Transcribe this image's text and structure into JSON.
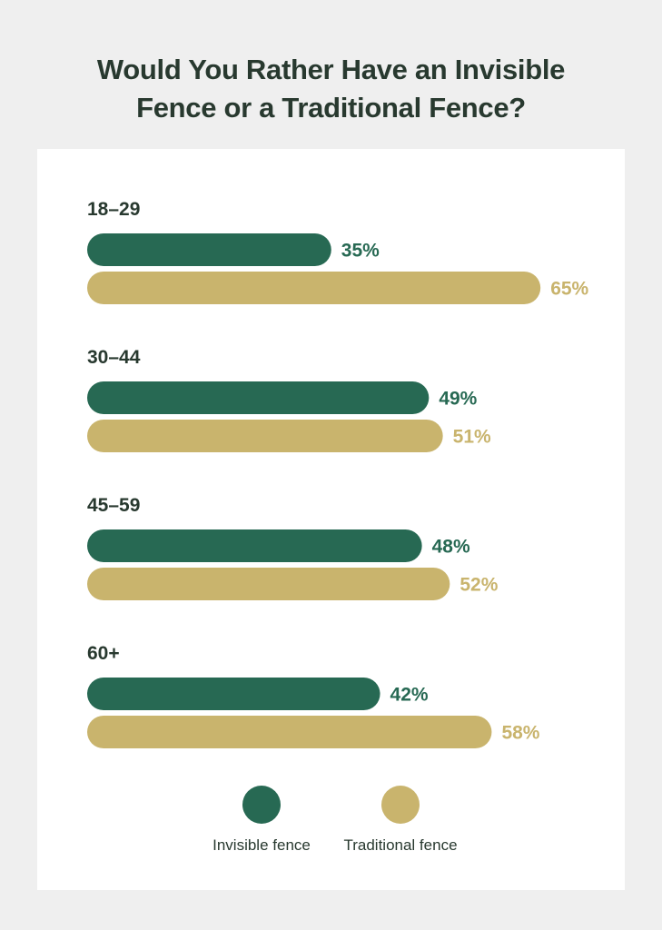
{
  "chart_data": {
    "type": "bar",
    "orientation": "horizontal",
    "title_lines": [
      "Would You Rather Have an Invisible",
      "Fence or a Traditional Fence?"
    ],
    "categories": [
      "18–29",
      "30–44",
      "45–59",
      "60+"
    ],
    "series": [
      {
        "name": "Invisible fence",
        "color": "#276953",
        "values": [
          35,
          49,
          48,
          42
        ],
        "labels": [
          "35%",
          "49%",
          "48%",
          "42%"
        ]
      },
      {
        "name": "Traditional fence",
        "color": "#c9b46d",
        "values": [
          65,
          51,
          52,
          58
        ],
        "labels": [
          "65%",
          "51%",
          "52%",
          "58%"
        ]
      }
    ],
    "unit": "%",
    "xlim": [
      0,
      100
    ],
    "grid": false,
    "legend_position": "bottom"
  }
}
